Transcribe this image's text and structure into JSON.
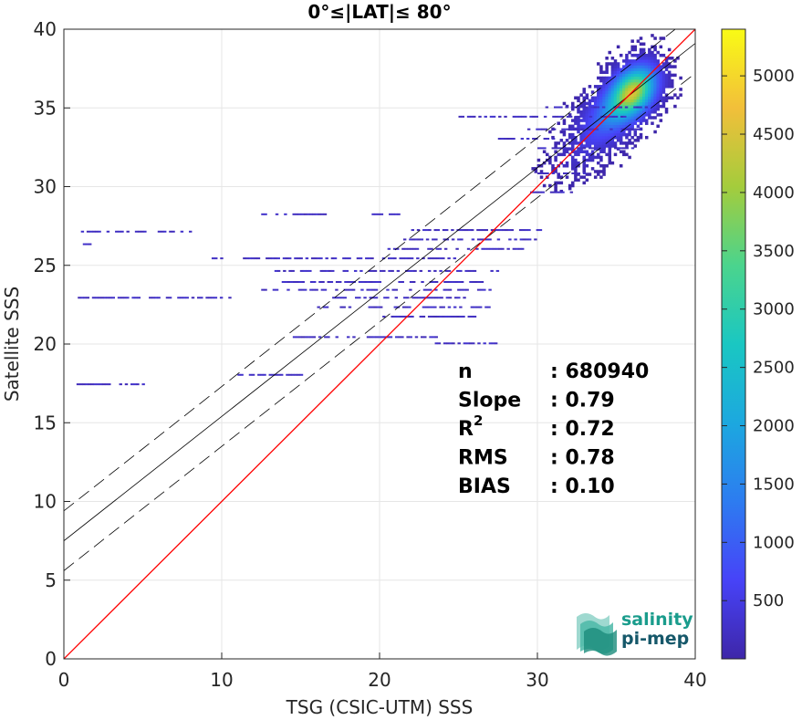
{
  "chart_data": {
    "type": "heatmap",
    "title": "0°≤|LAT|≤ 80°",
    "xlabel": "TSG (CSIC-UTM) SSS",
    "ylabel": "Satellite SSS",
    "xlim": [
      0,
      40
    ],
    "ylim": [
      0,
      40
    ],
    "xticks": [
      "0",
      "10",
      "20",
      "30",
      "40"
    ],
    "yticks": [
      "0",
      "5",
      "10",
      "15",
      "20",
      "25",
      "30",
      "35",
      "40"
    ],
    "grid": true,
    "colorbar": {
      "range": [
        1,
        5400
      ],
      "ticks": [
        "500",
        "1000",
        "1500",
        "2000",
        "2500",
        "3000",
        "3500",
        "4000",
        "4500",
        "5000"
      ],
      "colormap": "parula"
    },
    "reference_line": {
      "slope": 1,
      "intercept": 0,
      "color": "#ff0000"
    },
    "regression_line": {
      "slope": 0.79,
      "intercept": 7.5,
      "color": "#000000"
    },
    "regression_bounds": {
      "offset": 1.9,
      "style": "dashed"
    },
    "density_clusters": [
      {
        "x": 36,
        "y": 36,
        "sx": 1.1,
        "sy": 1.2,
        "weight": 1.0
      },
      {
        "x": 34,
        "y": 34,
        "sx": 1.3,
        "sy": 1.3,
        "weight": 0.35
      },
      {
        "x": 32,
        "y": 31.5,
        "sx": 1.4,
        "sy": 1.0,
        "weight": 0.12
      }
    ],
    "horizontal_streaks": [
      {
        "y": 27.1,
        "x0": 0.9,
        "x1": 8.0
      },
      {
        "y": 26.3,
        "x0": 1.2,
        "x1": 2.2
      },
      {
        "y": 22.9,
        "x0": 0.7,
        "x1": 10.5
      },
      {
        "y": 18.0,
        "x0": 11.0,
        "x1": 15.0
      },
      {
        "y": 17.4,
        "x0": 0.8,
        "x1": 5.0
      },
      {
        "y": 28.2,
        "x0": 12.5,
        "x1": 16.5
      },
      {
        "y": 28.2,
        "x0": 19.5,
        "x1": 22.0
      },
      {
        "y": 25.4,
        "x0": 9.0,
        "x1": 25.0
      },
      {
        "y": 24.6,
        "x0": 12.8,
        "x1": 27.5
      },
      {
        "y": 23.9,
        "x0": 13.8,
        "x1": 26.5
      },
      {
        "y": 23.4,
        "x0": 12.5,
        "x1": 27.0
      },
      {
        "y": 22.9,
        "x0": 17.0,
        "x1": 25.5
      },
      {
        "y": 22.3,
        "x0": 15.5,
        "x1": 27.5
      },
      {
        "y": 21.7,
        "x0": 20.0,
        "x1": 26.0
      },
      {
        "y": 20.4,
        "x0": 14.5,
        "x1": 23.5
      },
      {
        "y": 20.0,
        "x0": 23.5,
        "x1": 27.5
      },
      {
        "y": 26.0,
        "x0": 20.5,
        "x1": 29.0
      },
      {
        "y": 26.6,
        "x0": 21.5,
        "x1": 30.0
      },
      {
        "y": 27.2,
        "x0": 22.0,
        "x1": 30.5
      },
      {
        "y": 29.6,
        "x0": 29.0,
        "x1": 32.5
      },
      {
        "y": 30.8,
        "x0": 30.0,
        "x1": 33.0
      },
      {
        "y": 33.0,
        "x0": 27.5,
        "x1": 31.0
      },
      {
        "y": 34.4,
        "x0": 25.0,
        "x1": 35.5
      },
      {
        "y": 33.6,
        "x0": 29.0,
        "x1": 36.5
      },
      {
        "y": 32.4,
        "x0": 30.0,
        "x1": 36.0
      },
      {
        "y": 35.0,
        "x0": 30.5,
        "x1": 37.0
      }
    ],
    "stats": [
      {
        "label": "n",
        "sup": "",
        "value": ": 680940"
      },
      {
        "label": "Slope",
        "sup": "",
        "value": ": 0.79"
      },
      {
        "label": "R",
        "sup": "2",
        "value": ": 0.72"
      },
      {
        "label": "RMS",
        "sup": "",
        "value": ": 0.78"
      },
      {
        "label": "BIAS",
        "sup": "",
        "value": ": 0.10"
      }
    ]
  },
  "logo": {
    "line1": "salinity",
    "line2": "pi-mep"
  }
}
